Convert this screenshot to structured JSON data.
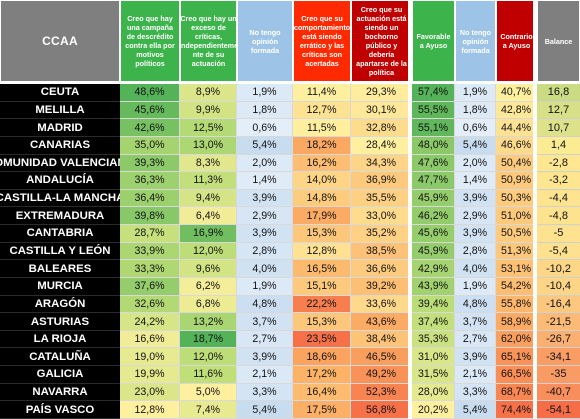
{
  "table": {
    "first_header": "CCAA",
    "headers": [
      "Creo que hay una campaña de descrédito contra ella por motivos políticos",
      "Creo que hay un exceso de críticas, independienteme nte de su actuación",
      "No tengo opinión formada",
      "Creo que su comportamiento está siendo errático y las críticas son acertadas",
      "Creo que su actuación está siendo un bochorno público y debería apartarse de la política",
      "Favorable a Ayuso",
      "No tengo opinión formada",
      "Contrario a Ayuso",
      "Balance"
    ],
    "header_colors": [
      "#3cb44b",
      "#3cb44b",
      "#9dc3e6",
      "#ff2a00",
      "#c00000",
      "#3cb44b",
      "#9dc3e6",
      "#c00000",
      "#7f7f7f"
    ],
    "rows": [
      {
        "name": "CEUTA",
        "cells": [
          "48,6%",
          "8,9%",
          "1,9%",
          "11,4%",
          "29,3%",
          "57,4%",
          "1,9%",
          "40,7%",
          "16,8"
        ]
      },
      {
        "name": "MELILLA",
        "cells": [
          "45,6%",
          "9,9%",
          "1,8%",
          "12,7%",
          "30,1%",
          "55,5%",
          "1,8%",
          "42,8%",
          "12,7"
        ]
      },
      {
        "name": "MADRID",
        "cells": [
          "42,6%",
          "12,5%",
          "0,6%",
          "11,5%",
          "32,8%",
          "55,1%",
          "0,6%",
          "44,4%",
          "10,7"
        ]
      },
      {
        "name": "CANARIAS",
        "cells": [
          "35,0%",
          "13,0%",
          "5,4%",
          "18,2%",
          "28,4%",
          "48,0%",
          "5,4%",
          "46,6%",
          "1,4"
        ]
      },
      {
        "name": "COMUNIDAD VALENCIANA",
        "cells": [
          "39,3%",
          "8,3%",
          "2,0%",
          "16,2%",
          "34,3%",
          "47,6%",
          "2,0%",
          "50,4%",
          "-2,8"
        ]
      },
      {
        "name": "ANDALUCÍA",
        "cells": [
          "36,3%",
          "11,3%",
          "1,4%",
          "14,0%",
          "36,9%",
          "47,7%",
          "1,4%",
          "50,9%",
          "-3,2"
        ]
      },
      {
        "name": "CASTILLA-LA MANCHA",
        "cells": [
          "36,4%",
          "9,4%",
          "3,9%",
          "14,8%",
          "35,5%",
          "45,9%",
          "3,9%",
          "50,3%",
          "-4,4"
        ]
      },
      {
        "name": "EXTREMADURA",
        "cells": [
          "39,8%",
          "6,4%",
          "2,9%",
          "17,9%",
          "33,0%",
          "46,2%",
          "2,9%",
          "51,0%",
          "-4,8"
        ]
      },
      {
        "name": "CANTABRIA",
        "cells": [
          "28,7%",
          "16,9%",
          "3,9%",
          "15,3%",
          "35,2%",
          "45,6%",
          "3,9%",
          "50,5%",
          "-5"
        ]
      },
      {
        "name": "CASTILLA Y LEÓN",
        "cells": [
          "33,9%",
          "12,0%",
          "2,8%",
          "12,8%",
          "38,5%",
          "45,9%",
          "2,8%",
          "51,3%",
          "-5,4"
        ]
      },
      {
        "name": "BALEARES",
        "cells": [
          "33,3%",
          "9,6%",
          "4,0%",
          "16,5%",
          "36,6%",
          "42,9%",
          "4,0%",
          "53,1%",
          "-10,2"
        ]
      },
      {
        "name": "MURCIA",
        "cells": [
          "37,6%",
          "6,2%",
          "1,9%",
          "15,1%",
          "39,2%",
          "43,9%",
          "1,9%",
          "54,2%",
          "-10,4"
        ]
      },
      {
        "name": "ARAGÓN",
        "cells": [
          "32,6%",
          "6,8%",
          "4,8%",
          "22,2%",
          "33,6%",
          "39,4%",
          "4,8%",
          "55,8%",
          "-16,4"
        ]
      },
      {
        "name": "ASTURIAS",
        "cells": [
          "24,2%",
          "13,2%",
          "3,7%",
          "15,3%",
          "43,6%",
          "37,4%",
          "3,7%",
          "58,9%",
          "-21,5"
        ]
      },
      {
        "name": "LA RIOJA",
        "cells": [
          "16,6%",
          "18,7%",
          "2,7%",
          "23,5%",
          "38,4%",
          "35,3%",
          "2,7%",
          "62,0%",
          "-26,7"
        ]
      },
      {
        "name": "CATALUÑA",
        "cells": [
          "19,0%",
          "12,0%",
          "3,9%",
          "18,6%",
          "46,5%",
          "31,0%",
          "3,9%",
          "65,1%",
          "-34,1"
        ]
      },
      {
        "name": "GALICIA",
        "cells": [
          "19,9%",
          "11,6%",
          "2,1%",
          "17,2%",
          "49,2%",
          "31,5%",
          "2,1%",
          "66,5%",
          "-35"
        ]
      },
      {
        "name": "NAVARRA",
        "cells": [
          "23,0%",
          "5,0%",
          "3,3%",
          "16,4%",
          "52,3%",
          "28,0%",
          "3,3%",
          "68,7%",
          "-40,7"
        ]
      },
      {
        "name": "PAÍS VASCO",
        "cells": [
          "12,8%",
          "7,4%",
          "5,4%",
          "17,5%",
          "56,8%",
          "20,2%",
          "5,4%",
          "74,4%",
          "-54,1"
        ]
      }
    ]
  },
  "chart_data": {
    "type": "table",
    "title": "",
    "columns": [
      "CCAA",
      "Creo que hay una campaña de descrédito contra ella por motivos políticos",
      "Creo que hay un exceso de críticas, independienteme nte de su actuación",
      "No tengo opinión formada",
      "Creo que su comportamiento está siendo errático y las críticas son acertadas",
      "Creo que su actuación está siendo un bochorno público y debería apartarse de la política",
      "Favorable a Ayuso",
      "No tengo opinión formada",
      "Contrario a Ayuso",
      "Balance"
    ],
    "categories": [
      "CEUTA",
      "MELILLA",
      "MADRID",
      "CANARIAS",
      "COMUNIDAD VALENCIANA",
      "ANDALUCÍA",
      "CASTILLA-LA MANCHA",
      "EXTREMADURA",
      "CANTABRIA",
      "CASTILLA Y LEÓN",
      "BALEARES",
      "MURCIA",
      "ARAGÓN",
      "ASTURIAS",
      "LA RIOJA",
      "CATALUÑA",
      "GALICIA",
      "NAVARRA",
      "PAÍS VASCO"
    ],
    "series": [
      {
        "name": "Creo que hay una campaña de descrédito contra ella por motivos políticos",
        "values": [
          48.6,
          45.6,
          42.6,
          35.0,
          39.3,
          36.3,
          36.4,
          39.8,
          28.7,
          33.9,
          33.3,
          37.6,
          32.6,
          24.2,
          16.6,
          19.0,
          19.9,
          23.0,
          12.8
        ]
      },
      {
        "name": "Creo que hay un exceso de críticas, independienteme nte de su actuación",
        "values": [
          8.9,
          9.9,
          12.5,
          13.0,
          8.3,
          11.3,
          9.4,
          6.4,
          16.9,
          12.0,
          9.6,
          6.2,
          6.8,
          13.2,
          18.7,
          12.0,
          11.6,
          5.0,
          7.4
        ]
      },
      {
        "name": "No tengo opinión formada",
        "values": [
          1.9,
          1.8,
          0.6,
          5.4,
          2.0,
          1.4,
          3.9,
          2.9,
          3.9,
          2.8,
          4.0,
          1.9,
          4.8,
          3.7,
          2.7,
          3.9,
          2.1,
          3.3,
          5.4
        ]
      },
      {
        "name": "Creo que su comportamiento está siendo errático y las críticas son acertadas",
        "values": [
          11.4,
          12.7,
          11.5,
          18.2,
          16.2,
          14.0,
          14.8,
          17.9,
          15.3,
          12.8,
          16.5,
          15.1,
          22.2,
          15.3,
          23.5,
          18.6,
          17.2,
          16.4,
          17.5
        ]
      },
      {
        "name": "Creo que su actuación está siendo un bochorno público y debería apartarse de la política",
        "values": [
          29.3,
          30.1,
          32.8,
          28.4,
          34.3,
          36.9,
          35.5,
          33.0,
          35.2,
          38.5,
          36.6,
          39.2,
          33.6,
          43.6,
          38.4,
          46.5,
          49.2,
          52.3,
          56.8
        ]
      },
      {
        "name": "Favorable a Ayuso",
        "values": [
          57.4,
          55.5,
          55.1,
          48.0,
          47.6,
          47.7,
          45.9,
          46.2,
          45.6,
          45.9,
          42.9,
          43.9,
          39.4,
          37.4,
          35.3,
          31.0,
          31.5,
          28.0,
          20.2
        ]
      },
      {
        "name": "No tengo opinión formada",
        "values": [
          1.9,
          1.8,
          0.6,
          5.4,
          2.0,
          1.4,
          3.9,
          2.9,
          3.9,
          2.8,
          4.0,
          1.9,
          4.8,
          3.7,
          2.7,
          3.9,
          2.1,
          3.3,
          5.4
        ]
      },
      {
        "name": "Contrario a Ayuso",
        "values": [
          40.7,
          42.8,
          44.4,
          46.6,
          50.4,
          50.9,
          50.3,
          51.0,
          50.5,
          51.3,
          53.1,
          54.2,
          55.8,
          58.9,
          62.0,
          65.1,
          66.5,
          68.7,
          74.4
        ]
      },
      {
        "name": "Balance",
        "values": [
          16.8,
          12.7,
          10.7,
          1.4,
          -2.8,
          -3.2,
          -4.4,
          -4.8,
          -5,
          -5.4,
          -10.2,
          -10.4,
          -16.4,
          -21.5,
          -26.7,
          -34.1,
          -35,
          -40.7,
          -54.1
        ]
      }
    ]
  }
}
